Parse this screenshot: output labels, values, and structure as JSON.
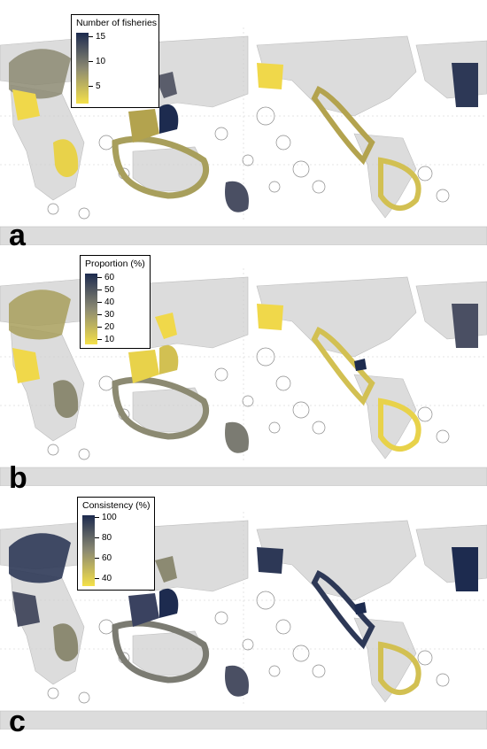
{
  "colors": {
    "ocean": "#ffffff",
    "land": "#dcdcdc",
    "eez_outline": "#8a8a8a",
    "scale_low": "#f5e14a",
    "scale_mid": "#8c8a72",
    "scale_high": "#1d2b4f"
  },
  "panels": [
    {
      "letter": "a",
      "legend": {
        "title": "Number of fisheries",
        "ticks": [
          "15",
          "10",
          "5"
        ]
      }
    },
    {
      "letter": "b",
      "legend": {
        "title": "Proportion (%)",
        "ticks": [
          "60",
          "50",
          "40",
          "30",
          "20",
          "10"
        ]
      }
    },
    {
      "letter": "c",
      "legend": {
        "title": "Consistency (%)",
        "ticks": [
          "100",
          "80",
          "60",
          "40"
        ]
      }
    }
  ]
}
